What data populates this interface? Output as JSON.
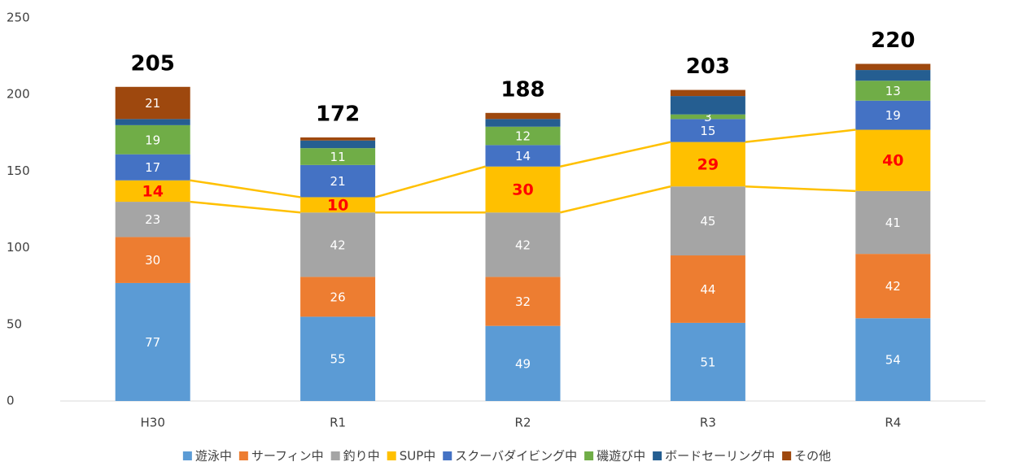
{
  "chart_data": {
    "type": "stacked_bar",
    "categories": [
      "H30",
      "R1",
      "R2",
      "R3",
      "R4"
    ],
    "totals": [
      205,
      172,
      188,
      203,
      220
    ],
    "series": [
      {
        "name": "遊泳中",
        "color": "#5b9bd5",
        "values": [
          77,
          55,
          49,
          51,
          54
        ]
      },
      {
        "name": "サーフィン中",
        "color": "#ed7d31",
        "values": [
          30,
          26,
          32,
          44,
          42
        ]
      },
      {
        "name": "釣り中",
        "color": "#a5a5a5",
        "values": [
          23,
          42,
          42,
          45,
          41
        ]
      },
      {
        "name": "SUP中",
        "color": "#ffc000",
        "values": [
          14,
          10,
          30,
          29,
          40
        ],
        "label_color": "#ff0000",
        "series_lines": true
      },
      {
        "name": "スクーバダイビング中",
        "color": "#4472c4",
        "values": [
          17,
          21,
          14,
          15,
          19
        ]
      },
      {
        "name": "磯遊び中",
        "color": "#70ad47",
        "values": [
          19,
          11,
          12,
          3,
          13
        ]
      },
      {
        "name": "ボードセーリング中",
        "color": "#255e91",
        "values": [
          4,
          5,
          5,
          12,
          7
        ],
        "value_labels": [
          null,
          null,
          null,
          null,
          null
        ]
      },
      {
        "name": "その他",
        "color": "#9e480e",
        "values": [
          21,
          2,
          4,
          4,
          4
        ],
        "value_labels": [
          "21",
          null,
          null,
          null,
          null
        ]
      }
    ],
    "ylim": [
      0,
      250
    ],
    "yticks": [
      0,
      50,
      100,
      150,
      200,
      250
    ],
    "grid": false,
    "legend": "bottom"
  }
}
